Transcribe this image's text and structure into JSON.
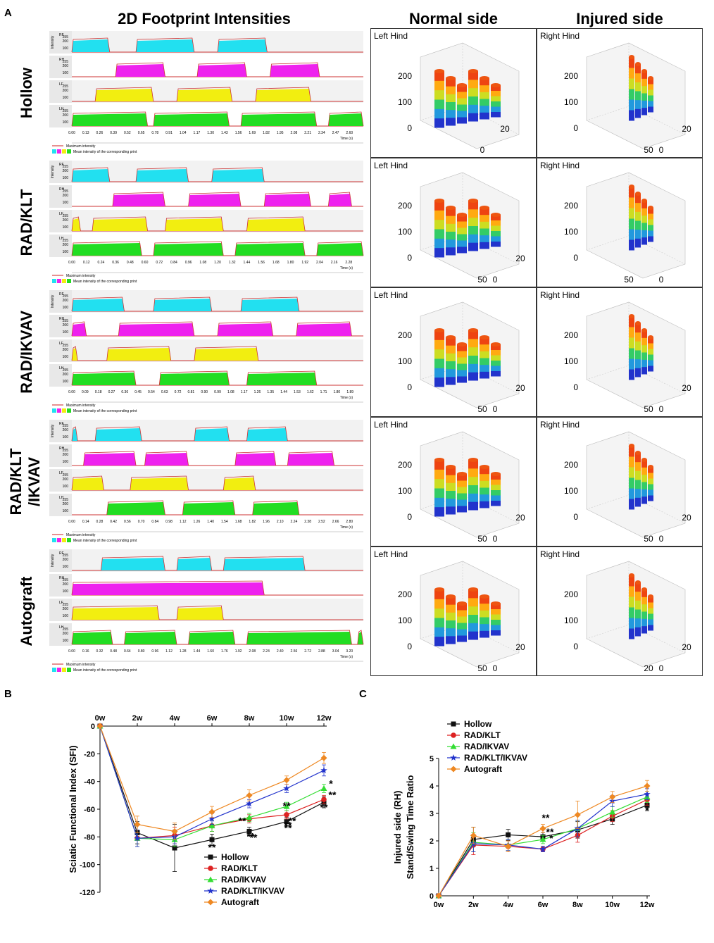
{
  "panel_labels": {
    "a": "A",
    "b": "B",
    "c": "C"
  },
  "panelA": {
    "title_2d": "2D Footprint Intensities",
    "title_normal": "Normal side",
    "title_injured": "Injured side",
    "rows": [
      {
        "group": "Hollow",
        "normal_label": "Left Hind",
        "injured_label": "Right Hind",
        "time_ticks": [
          "0.00",
          "0.13",
          "0.26",
          "0.39",
          "0.52",
          "0.65",
          "0.78",
          "0.91",
          "1.04",
          "1.17",
          "1.30",
          "1.43",
          "1.56",
          "1.69",
          "1.82",
          "1.95",
          "2.08",
          "2.21",
          "2.34",
          "2.47",
          "2.60"
        ],
        "n_ticks": [
          "0",
          "100",
          "200"
        ],
        "n_side": [
          "0",
          "20"
        ],
        "i_ticks": [
          "0",
          "100",
          "200"
        ],
        "i_side": [
          "50",
          "0",
          "20"
        ]
      },
      {
        "group": "RAD/KLT",
        "normal_label": "Left Hind",
        "injured_label": "Right Hind",
        "time_ticks": [
          "0.00",
          "0.12",
          "0.24",
          "0.36",
          "0.48",
          "0.60",
          "0.72",
          "0.84",
          "0.96",
          "1.08",
          "1.20",
          "1.32",
          "1.44",
          "1.56",
          "1.68",
          "1.80",
          "1.92",
          "2.04",
          "2.16",
          "2.28"
        ],
        "n_ticks": [
          "0",
          "100",
          "200"
        ],
        "n_side": [
          "50",
          "0",
          "20"
        ],
        "i_ticks": [
          "0",
          "100",
          "200"
        ],
        "i_side": [
          "50",
          "0"
        ]
      },
      {
        "group": "RAD/IKVAV",
        "normal_label": "Left Hind",
        "injured_label": "Right Hind",
        "time_ticks": [
          "0.00",
          "0.09",
          "0.18",
          "0.27",
          "0.36",
          "0.45",
          "0.54",
          "0.63",
          "0.72",
          "0.81",
          "0.90",
          "0.99",
          "1.08",
          "1.17",
          "1.26",
          "1.35",
          "1.44",
          "1.53",
          "1.62",
          "1.71",
          "1.80",
          "1.89"
        ],
        "n_ticks": [
          "0",
          "100",
          "200"
        ],
        "n_side": [
          "50",
          "0",
          "20"
        ],
        "i_ticks": [
          "0",
          "100",
          "200"
        ],
        "i_side": [
          "50",
          "0",
          "20"
        ]
      },
      {
        "group": "RAD/KLT\n/IKVAV",
        "normal_label": "Left Hind",
        "injured_label": "Right Hind",
        "time_ticks": [
          "0.00",
          "0.14",
          "0.28",
          "0.42",
          "0.56",
          "0.70",
          "0.84",
          "0.98",
          "1.12",
          "1.26",
          "1.40",
          "1.54",
          "1.68",
          "1.82",
          "1.96",
          "2.10",
          "2.24",
          "2.38",
          "2.52",
          "2.66",
          "2.80"
        ],
        "n_ticks": [
          "0",
          "100",
          "200"
        ],
        "n_side": [
          "50",
          "0",
          "20"
        ],
        "i_ticks": [
          "0",
          "100",
          "200"
        ],
        "i_side": [
          "50",
          "0",
          "20"
        ]
      },
      {
        "group": "Autograft",
        "normal_label": "Left Hind",
        "injured_label": "Right Hind",
        "time_ticks": [
          "0.00",
          "0.16",
          "0.32",
          "0.48",
          "0.64",
          "0.80",
          "0.96",
          "1.12",
          "1.28",
          "1.44",
          "1.60",
          "1.76",
          "1.92",
          "2.08",
          "2.24",
          "2.40",
          "2.56",
          "2.72",
          "2.88",
          "3.04",
          "3.20"
        ],
        "n_ticks": [
          "0",
          "100",
          "200"
        ],
        "n_side": [
          "50",
          "0",
          "20"
        ],
        "i_ticks": [
          "0",
          "100",
          "200"
        ],
        "i_side": [
          "20",
          "0",
          "20"
        ]
      }
    ],
    "track_labels": [
      "RF",
      "RH",
      "LF",
      "LH"
    ],
    "intensity_label": "Intensity",
    "time_label": "Time (s)",
    "legend_max": "Maximum intensity",
    "legend_mean": "Mean intensity of the corresponding print",
    "colors": {
      "RF": "#22e0f0",
      "RH": "#ee22ee",
      "LF": "#f2ee10",
      "LH": "#22dd22",
      "max_line": "#cc2222"
    }
  },
  "chart_data": [
    {
      "type": "line",
      "panel": "B",
      "ylabel": "Sciatic Functional Index (SFI)",
      "categories": [
        "0w",
        "2w",
        "4w",
        "6w",
        "8w",
        "10w",
        "12w"
      ],
      "ylim": [
        -120,
        0
      ],
      "yticks": [
        "0",
        "-20",
        "-40",
        "-60",
        "-80",
        "-100",
        "-120"
      ],
      "legend_position": "bottom-right",
      "significance": [
        "**",
        "**",
        "**",
        "**",
        "**",
        "**",
        "**",
        "**",
        "**",
        "*",
        "**"
      ],
      "series": [
        {
          "name": "Hollow",
          "color": "#111111",
          "marker": "square",
          "values": [
            0,
            -77,
            -88,
            -82,
            -76,
            -69,
            -55
          ],
          "err": [
            0,
            8,
            17,
            4,
            3,
            3,
            4
          ]
        },
        {
          "name": "RAD/KLT",
          "color": "#dd2222",
          "marker": "circle",
          "values": [
            0,
            -81,
            -79,
            -72,
            -67,
            -64,
            -53
          ],
          "err": [
            0,
            6,
            6,
            4,
            3,
            3,
            3
          ]
        },
        {
          "name": "RAD/IKVAV",
          "color": "#33dd33",
          "marker": "triangle",
          "values": [
            0,
            -81,
            -82,
            -72,
            -66,
            -58,
            -45
          ],
          "err": [
            0,
            6,
            5,
            4,
            3,
            3,
            3
          ]
        },
        {
          "name": "RAD/KLT/IKVAV",
          "color": "#2233cc",
          "marker": "star",
          "values": [
            0,
            -81,
            -80,
            -67,
            -56,
            -45,
            -32
          ],
          "err": [
            0,
            6,
            5,
            4,
            3,
            3,
            4
          ]
        },
        {
          "name": "Autograft",
          "color": "#ee8822",
          "marker": "diamond",
          "values": [
            0,
            -71,
            -76,
            -62,
            -50,
            -39,
            -23
          ],
          "err": [
            0,
            6,
            6,
            4,
            4,
            3,
            4
          ]
        }
      ]
    },
    {
      "type": "line",
      "panel": "C",
      "ylabel": "Injured side (RH) Stand/Swing Time Ratio",
      "categories": [
        "0w",
        "2w",
        "4w",
        "6w",
        "8w",
        "10w",
        "12w"
      ],
      "ylim": [
        0,
        5
      ],
      "yticks": [
        "0",
        "1",
        "2",
        "3",
        "4",
        "5"
      ],
      "legend_position": "top-left",
      "significance": [
        "**",
        "**",
        "*",
        "*"
      ],
      "series": [
        {
          "name": "Hollow",
          "color": "#111111",
          "marker": "square",
          "values": [
            0,
            2.05,
            2.22,
            2.15,
            2.4,
            2.8,
            3.3
          ],
          "err": [
            0,
            0.45,
            0.2,
            0.15,
            0.3,
            0.2,
            0.2
          ]
        },
        {
          "name": "RAD/KLT",
          "color": "#dd2222",
          "marker": "circle",
          "values": [
            0,
            1.85,
            1.8,
            1.7,
            2.2,
            2.9,
            3.5
          ],
          "err": [
            0,
            0.35,
            0.2,
            0.1,
            0.25,
            0.2,
            0.2
          ]
        },
        {
          "name": "RAD/IKVAV",
          "color": "#33dd33",
          "marker": "triangle",
          "values": [
            0,
            1.95,
            1.85,
            2.05,
            2.45,
            3.05,
            3.6
          ],
          "err": [
            0,
            0.35,
            0.2,
            0.15,
            0.3,
            0.2,
            0.2
          ]
        },
        {
          "name": "RAD/KLT/IKVAV",
          "color": "#2233cc",
          "marker": "star",
          "values": [
            0,
            1.9,
            1.85,
            1.7,
            2.45,
            3.45,
            3.7
          ],
          "err": [
            0,
            0.3,
            0.2,
            0.1,
            0.3,
            0.2,
            0.2
          ]
        },
        {
          "name": "Autograft",
          "color": "#ee8822",
          "marker": "diamond",
          "values": [
            0,
            2.2,
            1.8,
            2.45,
            2.95,
            3.6,
            4.0
          ],
          "err": [
            0,
            0.3,
            0.2,
            0.15,
            0.5,
            0.2,
            0.2
          ]
        }
      ]
    }
  ]
}
